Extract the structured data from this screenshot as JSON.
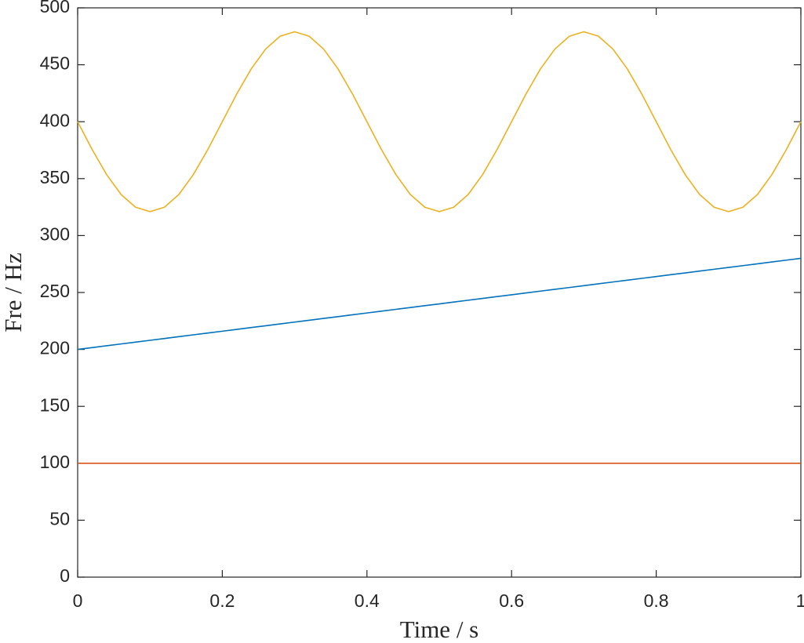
{
  "chart_data": {
    "type": "line",
    "xlabel": "Time / s",
    "ylabel": "Fre / Hz",
    "x": [
      0,
      0.02,
      0.04,
      0.06,
      0.08,
      0.1,
      0.12,
      0.14,
      0.16,
      0.18,
      0.2,
      0.22,
      0.24,
      0.26,
      0.28,
      0.3,
      0.32,
      0.34,
      0.36,
      0.38,
      0.4,
      0.42,
      0.44,
      0.46,
      0.48,
      0.5,
      0.52,
      0.54,
      0.56,
      0.58,
      0.6,
      0.62,
      0.64,
      0.66,
      0.68,
      0.7,
      0.72,
      0.74,
      0.76,
      0.78,
      0.8,
      0.82,
      0.84,
      0.86,
      0.88,
      0.9,
      0.92,
      0.94,
      0.96,
      0.98,
      1
    ],
    "series": [
      {
        "color": "#0072BD",
        "values": [
          200,
          201.6,
          203.2,
          204.8,
          206.4,
          208,
          209.6,
          211.2,
          212.8,
          214.4,
          216,
          217.6,
          219.2,
          220.8,
          222.4,
          224,
          225.6,
          227.2,
          228.8,
          230.4,
          232,
          233.6,
          235.2,
          236.8,
          238.4,
          240,
          241.6,
          243.2,
          244.8,
          246.4,
          248,
          249.6,
          251.2,
          252.8,
          254.4,
          256,
          257.6,
          259.2,
          260.8,
          262.4,
          264,
          265.6,
          267.2,
          268.8,
          270.4,
          272,
          273.6,
          275.2,
          276.8,
          278.4,
          280
        ]
      },
      {
        "color": "#D95319",
        "values": [
          100,
          100,
          100,
          100,
          100,
          100,
          100,
          100,
          100,
          100,
          100,
          100,
          100,
          100,
          100,
          100,
          100,
          100,
          100,
          100,
          100,
          100,
          100,
          100,
          100,
          100,
          100,
          100,
          100,
          100,
          100,
          100,
          100,
          100,
          100,
          100,
          100,
          100,
          100,
          100,
          100,
          100,
          100,
          100,
          100,
          100,
          100,
          100,
          100,
          100,
          100
        ]
      },
      {
        "color": "#EDB120",
        "values": [
          400,
          375.6,
          353.6,
          336.1,
          324.9,
          321,
          324.9,
          336.1,
          353.6,
          375.6,
          400,
          424.4,
          446.4,
          463.9,
          475.1,
          479,
          475.1,
          463.9,
          446.4,
          424.4,
          400,
          375.6,
          353.6,
          336.1,
          324.9,
          321,
          324.9,
          336.1,
          353.6,
          375.6,
          400,
          424.4,
          446.4,
          463.9,
          475.1,
          479,
          475.1,
          463.9,
          446.4,
          424.4,
          400,
          375.6,
          353.6,
          336.1,
          324.9,
          321,
          324.9,
          336.1,
          353.6,
          375.6,
          400
        ]
      }
    ],
    "xlim": [
      0,
      1
    ],
    "xticks": [
      0,
      0.2,
      0.4,
      0.6,
      0.8,
      1
    ],
    "ylim": [
      0,
      500
    ],
    "yticks": [
      0,
      50,
      100,
      150,
      200,
      250,
      300,
      350,
      400,
      450,
      500
    ],
    "grid": false
  }
}
